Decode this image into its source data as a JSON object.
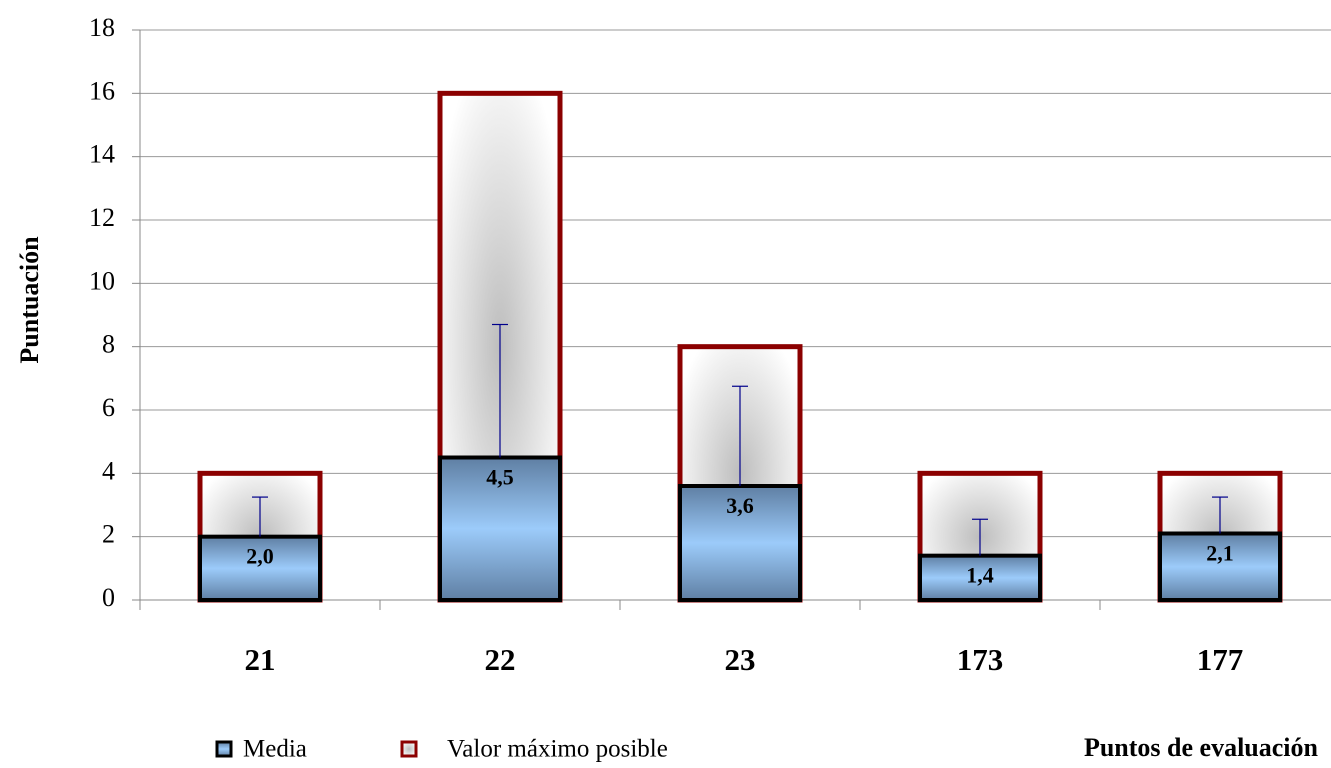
{
  "chart_data": {
    "type": "bar",
    "overlap": true,
    "ylabel": "Puntuación",
    "xlabel": "Puntos de evaluación",
    "categories": [
      "21",
      "22",
      "23",
      "173",
      "177"
    ],
    "series": [
      {
        "name": "Media",
        "color": "#8fc3f5",
        "values": [
          2.0,
          4.5,
          3.6,
          1.4,
          2.1
        ],
        "value_labels": [
          "2,0",
          "4,5",
          "3,6",
          "1,4",
          "2,1"
        ],
        "errors": [
          1.25,
          4.2,
          3.15,
          1.15,
          1.15
        ],
        "error_color": "#00008b"
      },
      {
        "name": "Valor máximo posible",
        "color": "#8b0000",
        "values": [
          4,
          16,
          8,
          4,
          4
        ]
      }
    ],
    "ylim": [
      0,
      18
    ],
    "yticks": [
      0,
      2,
      4,
      6,
      8,
      10,
      12,
      14,
      16,
      18
    ],
    "grid": true,
    "legend": "bottom"
  }
}
